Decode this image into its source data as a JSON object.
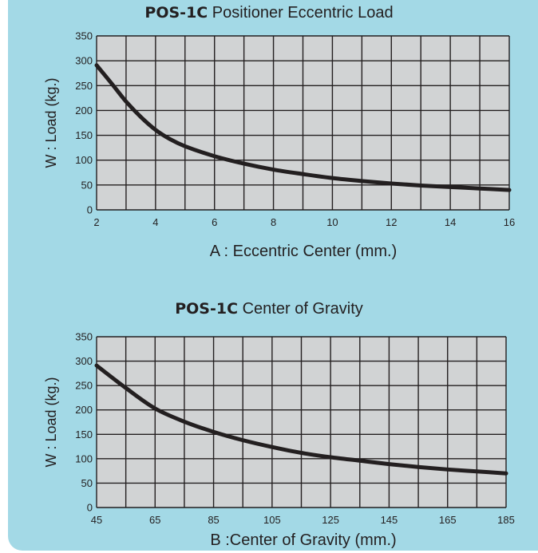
{
  "charts": [
    {
      "title_bold": "POS-1C",
      "title_rest": " Positioner Eccentric Load",
      "xlabel": "A : Eccentric Center (mm.)",
      "ylabel": "W : Load (kg.)"
    },
    {
      "title_bold": "POS-1C",
      "title_rest": " Center of Gravity",
      "xlabel": "B :Center of Gravity (mm.)",
      "ylabel": "W : Load (kg.)"
    }
  ],
  "colors": {
    "panel": "#a3d9e6",
    "plot_bg": "#d1d3d4",
    "grid": "#231f20",
    "curve": "#231f20"
  },
  "chart_data": [
    {
      "type": "line",
      "title": "POS-1C Positioner Eccentric Load",
      "xlabel": "A : Eccentric Center (mm.)",
      "ylabel": "W : Load (kg.)",
      "xlim": [
        2,
        16
      ],
      "ylim": [
        0,
        350
      ],
      "xticks": [
        2,
        4,
        6,
        8,
        10,
        12,
        14,
        16
      ],
      "yticks": [
        0,
        50,
        100,
        150,
        200,
        250,
        300,
        350
      ],
      "x_grid_step": 1,
      "grid": true,
      "series": [
        {
          "x": [
            2,
            2.5,
            3,
            3.5,
            4,
            4.5,
            5,
            6,
            7,
            8,
            9,
            10,
            11,
            12,
            13,
            14,
            15,
            16
          ],
          "values": [
            291,
            255,
            218,
            187,
            161,
            142,
            128,
            108,
            93,
            81,
            72,
            64,
            58,
            53,
            49,
            46,
            43,
            40
          ]
        }
      ]
    },
    {
      "type": "line",
      "title": "POS-1C Center of Gravity",
      "xlabel": "B :Center of Gravity (mm.)",
      "ylabel": "W : Load (kg.)",
      "xlim": [
        45,
        185
      ],
      "ylim": [
        0,
        350
      ],
      "xticks": [
        45,
        65,
        85,
        105,
        125,
        145,
        165,
        185
      ],
      "yticks": [
        0,
        50,
        100,
        150,
        200,
        250,
        300,
        350
      ],
      "x_grid_step": 10,
      "grid": true,
      "series": [
        {
          "x": [
            45,
            55,
            65,
            75,
            85,
            95,
            105,
            115,
            125,
            135,
            145,
            155,
            165,
            175,
            185
          ],
          "values": [
            291,
            245,
            203,
            176,
            155,
            138,
            124,
            112,
            103,
            96,
            89,
            83,
            78,
            74,
            70
          ]
        }
      ]
    }
  ]
}
